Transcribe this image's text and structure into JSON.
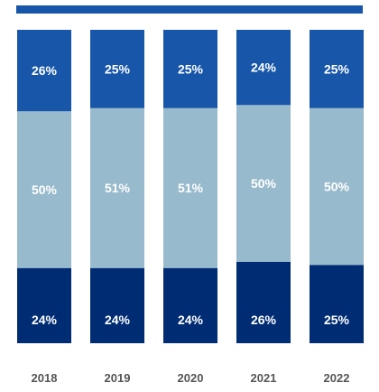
{
  "chart_data": {
    "type": "bar",
    "stacked": true,
    "percent_stacked": true,
    "categories": [
      "2018",
      "2019",
      "2020",
      "2021",
      "2022"
    ],
    "series": [
      {
        "color": "#002C73",
        "values": [
          24,
          24,
          24,
          26,
          25
        ],
        "labels": [
          "24%",
          "24%",
          "24%",
          "26%",
          "25%"
        ]
      },
      {
        "color": "#97BACC",
        "values": [
          50,
          51,
          51,
          50,
          50
        ],
        "labels": [
          "50%",
          "51%",
          "51%",
          "50%",
          "50%"
        ]
      },
      {
        "color": "#1756A8",
        "values": [
          26,
          25,
          25,
          24,
          25
        ],
        "labels": [
          "26%",
          "25%",
          "25%",
          "24%",
          "25%"
        ]
      }
    ],
    "ylim": [
      0,
      100
    ],
    "grid": false,
    "legend_color": "#1756A8",
    "tick_label_color": "#555555"
  }
}
